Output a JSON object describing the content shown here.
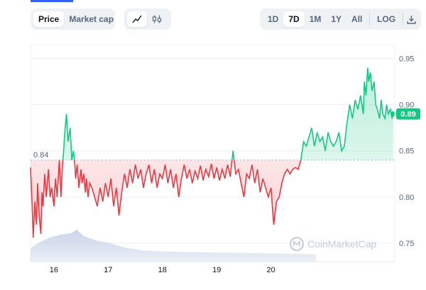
{
  "toolbar": {
    "view_toggle": [
      "Price",
      "Market cap"
    ],
    "view_active": "Price",
    "chart_style_icons": [
      "line-chart-icon",
      "candlestick-icon"
    ],
    "ranges": [
      "1D",
      "7D",
      "1M",
      "1Y",
      "All"
    ],
    "range_active": "7D",
    "log_label": "LOG",
    "download_icon": "download-icon"
  },
  "watermark": {
    "text": "CoinMarketCap"
  },
  "colors": {
    "up": "#16c784",
    "down": "#ea3943",
    "volume": "#c7d2e6",
    "accent": "#3861fb"
  },
  "chart_data": {
    "type": "line",
    "ylim": [
      0.73,
      0.965
    ],
    "y_ticks": [
      0.75,
      0.8,
      0.85,
      0.9,
      0.95
    ],
    "y_tick_labels": [
      "0.75",
      "0.80",
      "0.85",
      "0.90",
      "0.95"
    ],
    "x_ticks": [
      16,
      17,
      18,
      19,
      20
    ],
    "x_tick_labels": [
      "16",
      "17",
      "18",
      "19",
      "20"
    ],
    "xlim": [
      15.57,
      22.28
    ],
    "reference": {
      "value": 0.84,
      "label": "0.84"
    },
    "current": {
      "value": 0.89,
      "label": "0.89"
    },
    "series": [
      {
        "x": [
          15.57,
          15.6,
          15.62,
          15.65,
          15.68,
          15.7,
          15.73,
          15.76,
          15.78,
          15.8,
          15.83,
          15.86,
          15.9,
          15.93,
          15.96,
          16.0,
          16.03,
          16.06,
          16.1,
          16.13,
          16.16,
          16.18,
          16.2,
          16.23,
          16.26,
          16.3,
          16.33,
          16.36,
          16.38,
          16.4,
          16.43,
          16.46,
          16.5,
          16.52,
          16.55,
          16.58,
          16.6,
          16.63,
          16.66,
          16.7,
          16.75,
          16.8,
          16.85,
          16.9,
          16.95,
          17.0,
          17.05,
          17.1,
          17.15,
          17.2,
          17.25,
          17.3,
          17.35,
          17.4,
          17.45,
          17.5,
          17.55,
          17.6,
          17.65,
          17.7,
          17.75,
          17.8,
          17.85,
          17.9,
          17.95,
          18.0,
          18.05,
          18.1,
          18.15,
          18.2,
          18.25,
          18.3,
          18.35,
          18.4,
          18.45,
          18.5,
          18.55,
          18.6,
          18.65,
          18.7,
          18.75,
          18.8,
          18.85,
          18.9,
          18.95,
          19.0,
          19.05,
          19.1,
          19.15,
          19.2,
          19.25,
          19.3,
          19.35,
          19.4,
          19.45,
          19.5,
          19.55,
          19.6,
          19.65,
          19.7,
          19.75,
          19.8,
          19.85,
          19.9,
          19.95,
          20.0,
          20.05,
          20.1,
          20.15,
          20.2,
          20.25,
          20.3,
          20.35,
          20.4,
          20.45,
          20.5,
          20.55,
          20.6,
          20.65,
          20.7,
          20.75,
          20.8,
          20.85,
          20.9,
          20.95,
          21.0,
          21.05,
          21.1,
          21.15,
          21.2,
          21.25,
          21.3,
          21.35,
          21.4,
          21.45,
          21.5,
          21.55,
          21.6,
          21.65,
          21.7,
          21.72,
          21.75,
          21.78,
          21.8,
          21.83,
          21.86,
          21.9,
          21.93,
          21.96,
          22.0,
          22.03,
          22.06,
          22.1,
          22.13,
          22.16,
          22.2,
          22.23,
          22.25
        ],
        "y": [
          0.832,
          0.79,
          0.756,
          0.795,
          0.77,
          0.815,
          0.78,
          0.76,
          0.805,
          0.79,
          0.825,
          0.8,
          0.83,
          0.8,
          0.81,
          0.79,
          0.82,
          0.8,
          0.84,
          0.8,
          0.835,
          0.85,
          0.87,
          0.89,
          0.86,
          0.875,
          0.84,
          0.85,
          0.84,
          0.82,
          0.835,
          0.81,
          0.83,
          0.815,
          0.825,
          0.805,
          0.82,
          0.8,
          0.815,
          0.81,
          0.8,
          0.79,
          0.81,
          0.795,
          0.815,
          0.8,
          0.82,
          0.79,
          0.81,
          0.78,
          0.805,
          0.825,
          0.81,
          0.83,
          0.815,
          0.835,
          0.82,
          0.83,
          0.81,
          0.825,
          0.835,
          0.815,
          0.83,
          0.81,
          0.825,
          0.82,
          0.835,
          0.815,
          0.83,
          0.81,
          0.825,
          0.8,
          0.82,
          0.835,
          0.82,
          0.83,
          0.815,
          0.828,
          0.82,
          0.834,
          0.818,
          0.83,
          0.822,
          0.836,
          0.82,
          0.832,
          0.818,
          0.83,
          0.82,
          0.835,
          0.822,
          0.85,
          0.825,
          0.83,
          0.815,
          0.8,
          0.825,
          0.82,
          0.835,
          0.815,
          0.83,
          0.805,
          0.82,
          0.81,
          0.8,
          0.81,
          0.77,
          0.795,
          0.8,
          0.815,
          0.825,
          0.83,
          0.825,
          0.83,
          0.832,
          0.83,
          0.84,
          0.86,
          0.855,
          0.865,
          0.875,
          0.855,
          0.87,
          0.86,
          0.865,
          0.85,
          0.87,
          0.86,
          0.855,
          0.86,
          0.87,
          0.85,
          0.855,
          0.88,
          0.9,
          0.885,
          0.905,
          0.895,
          0.91,
          0.89,
          0.925,
          0.91,
          0.94,
          0.925,
          0.935,
          0.915,
          0.925,
          0.9,
          0.895,
          0.885,
          0.905,
          0.89,
          0.885,
          0.9,
          0.89,
          0.895,
          0.885,
          0.89
        ]
      }
    ]
  }
}
